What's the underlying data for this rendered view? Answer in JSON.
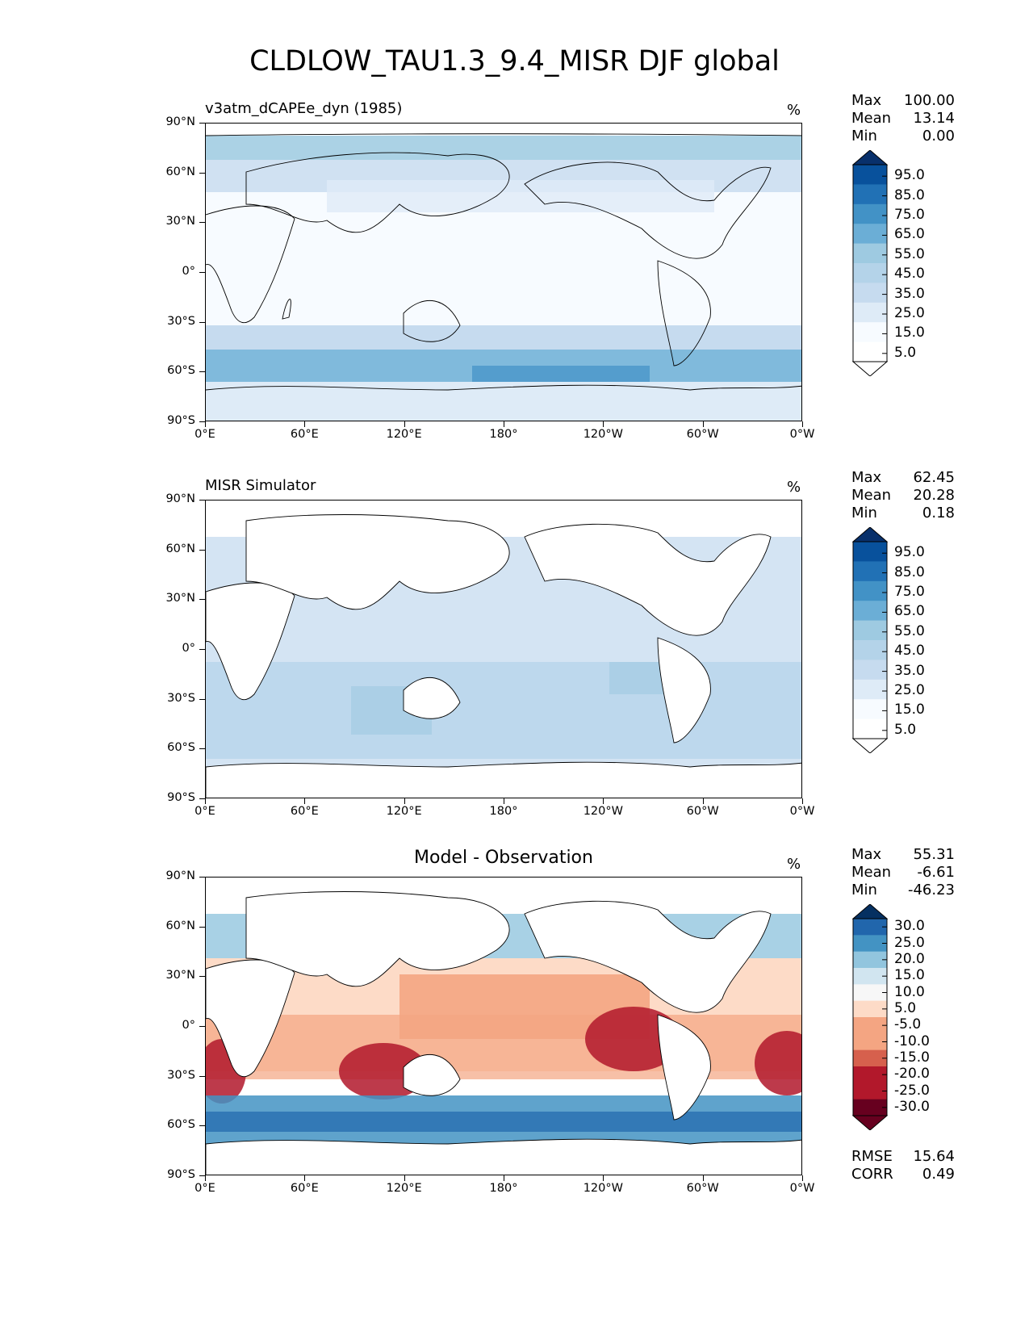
{
  "figure_title": "CLDLOW_TAU1.3_9.4_MISR DJF global",
  "colors": {
    "blues": [
      "#f7fbff",
      "#deebf7",
      "#c6dbef",
      "#b4d3e9",
      "#9ecae1",
      "#6baed6",
      "#4292c6",
      "#2171b5",
      "#08519c",
      "#08306b"
    ],
    "diverging": [
      "#67001f",
      "#b2182b",
      "#d6604d",
      "#f4a582",
      "#fddbc7",
      "#f7f7f7",
      "#d1e5f0",
      "#92c5de",
      "#4393c3",
      "#2166ac",
      "#053061"
    ]
  },
  "panels": [
    {
      "id": "test",
      "label": "v3atm_dCAPEe_dyn (1985)",
      "title": "",
      "units": "%",
      "stats": [
        {
          "name": "Max",
          "value": "100.00"
        },
        {
          "name": "Mean",
          "value": "13.14"
        },
        {
          "name": "Min",
          "value": "0.00"
        }
      ],
      "colorbar_labels": [
        "95.0",
        "85.0",
        "75.0",
        "65.0",
        "55.0",
        "45.0",
        "35.0",
        "25.0",
        "15.0",
        "5.0"
      ],
      "extra_stats": []
    },
    {
      "id": "reference",
      "label": "MISR Simulator",
      "title": "",
      "units": "%",
      "stats": [
        {
          "name": "Max",
          "value": "62.45"
        },
        {
          "name": "Mean",
          "value": "20.28"
        },
        {
          "name": "Min",
          "value": "0.18"
        }
      ],
      "colorbar_labels": [
        "95.0",
        "85.0",
        "75.0",
        "65.0",
        "55.0",
        "45.0",
        "35.0",
        "25.0",
        "15.0",
        "5.0"
      ],
      "extra_stats": []
    },
    {
      "id": "difference",
      "label": "",
      "title": "Model - Observation",
      "units": "%",
      "stats": [
        {
          "name": "Max",
          "value": "55.31"
        },
        {
          "name": "Mean",
          "value": "-6.61"
        },
        {
          "name": "Min",
          "value": "-46.23"
        }
      ],
      "colorbar_labels": [
        "30.0",
        "25.0",
        "20.0",
        "15.0",
        "10.0",
        "5.0",
        "-5.0",
        "-10.0",
        "-15.0",
        "-20.0",
        "-25.0",
        "-30.0"
      ],
      "extra_stats": [
        {
          "name": "RMSE",
          "value": "15.64"
        },
        {
          "name": "CORR",
          "value": "0.49"
        }
      ]
    }
  ],
  "axes": {
    "lat_ticks": [
      "90°N",
      "60°N",
      "30°N",
      "0°",
      "30°S",
      "60°S",
      "90°S"
    ],
    "lon_ticks": [
      "0°E",
      "60°E",
      "120°E",
      "180°",
      "120°W",
      "60°W",
      "0°W"
    ]
  }
}
